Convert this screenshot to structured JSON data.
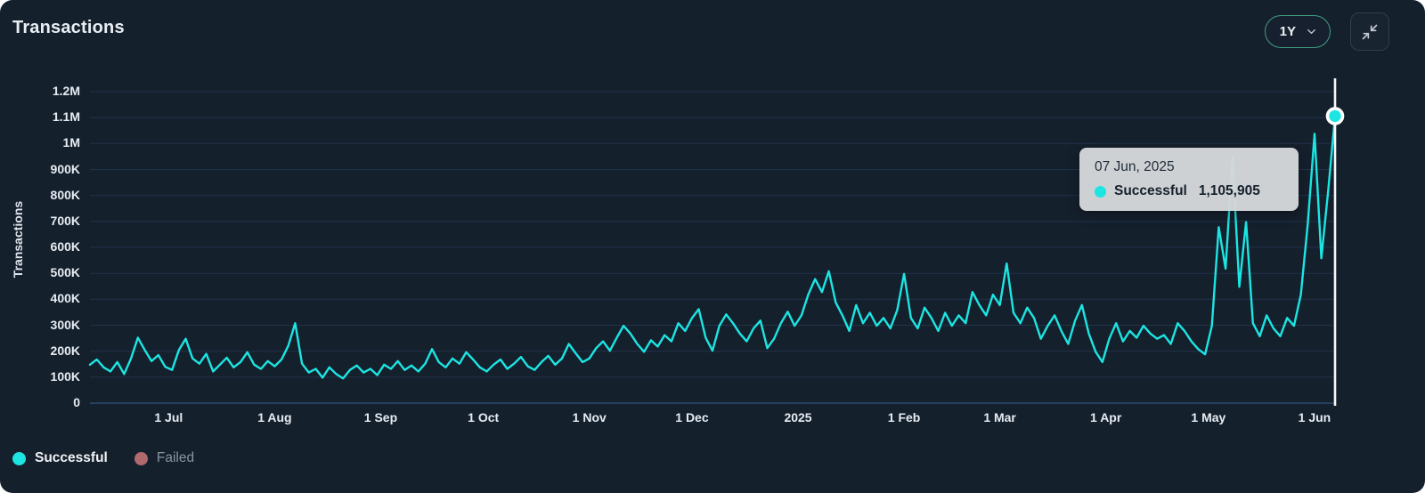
{
  "header": {
    "title": "Transactions",
    "range_selector": {
      "value": "1Y"
    }
  },
  "tooltip": {
    "date": "07 Jun, 2025",
    "series_label": "Successful",
    "value": "1,105,905"
  },
  "legend": [
    {
      "label": "Successful",
      "color": "#1ce5e2",
      "active": true
    },
    {
      "label": "Failed",
      "color": "#b06a6e",
      "active": false
    }
  ],
  "colors": {
    "background": "#15202d",
    "line": "#1ce5e2",
    "gridline": "#20324a",
    "axis_line": "#2d4b6e",
    "crosshair": "#f5f8fa",
    "tooltip_bg": "#d5d7d9",
    "tooltip_text": "#16202c",
    "text_primary": "#e9eef3",
    "text_muted": "#8b95a2",
    "range_pill_border": "#3f9e82",
    "failed": "#b06a6e"
  },
  "chart_data": {
    "type": "line",
    "title": "Transactions",
    "xlabel": "",
    "ylabel": "Transactions",
    "ylim": [
      0,
      1200000
    ],
    "grid": "horizontal",
    "legend_position": "bottom-left",
    "y_ticks": [
      {
        "label": "0",
        "value": 0
      },
      {
        "label": "100K",
        "value": 100000
      },
      {
        "label": "200K",
        "value": 200000
      },
      {
        "label": "300K",
        "value": 300000
      },
      {
        "label": "400K",
        "value": 400000
      },
      {
        "label": "500K",
        "value": 500000
      },
      {
        "label": "600K",
        "value": 600000
      },
      {
        "label": "700K",
        "value": 700000
      },
      {
        "label": "800K",
        "value": 800000
      },
      {
        "label": "900K",
        "value": 900000
      },
      {
        "label": "1M",
        "value": 1000000
      },
      {
        "label": "1.1M",
        "value": 1100000
      },
      {
        "label": "1.2M",
        "value": 1200000
      }
    ],
    "x_ticks": [
      {
        "label": "1 Jul",
        "day": 23
      },
      {
        "label": "1 Aug",
        "day": 54
      },
      {
        "label": "1 Sep",
        "day": 85
      },
      {
        "label": "1 Oct",
        "day": 115
      },
      {
        "label": "1 Nov",
        "day": 146
      },
      {
        "label": "1 Dec",
        "day": 176
      },
      {
        "label": "2025",
        "day": 207
      },
      {
        "label": "1 Feb",
        "day": 238
      },
      {
        "label": "1 Mar",
        "day": 266
      },
      {
        "label": "1 Apr",
        "day": 297
      },
      {
        "label": "1 May",
        "day": 327
      },
      {
        "label": "1 Jun",
        "day": 358
      }
    ],
    "x_total_days": 364,
    "point_interval_days": 2,
    "estimated": true,
    "series": [
      {
        "name": "Successful",
        "color": "#1ce5e2",
        "values": [
          148000,
          168000,
          138000,
          122000,
          158000,
          112000,
          172000,
          252000,
          205000,
          162000,
          185000,
          140000,
          128000,
          205000,
          248000,
          172000,
          152000,
          190000,
          122000,
          148000,
          175000,
          138000,
          158000,
          196000,
          148000,
          132000,
          162000,
          142000,
          168000,
          222000,
          308000,
          152000,
          118000,
          132000,
          98000,
          138000,
          112000,
          95000,
          128000,
          145000,
          118000,
          132000,
          108000,
          148000,
          132000,
          162000,
          128000,
          145000,
          122000,
          152000,
          208000,
          158000,
          138000,
          172000,
          152000,
          196000,
          168000,
          138000,
          122000,
          148000,
          168000,
          132000,
          152000,
          178000,
          142000,
          128000,
          158000,
          182000,
          148000,
          172000,
          228000,
          192000,
          158000,
          172000,
          212000,
          238000,
          202000,
          252000,
          298000,
          268000,
          228000,
          198000,
          242000,
          218000,
          262000,
          238000,
          308000,
          278000,
          328000,
          362000,
          252000,
          202000,
          298000,
          342000,
          308000,
          268000,
          238000,
          288000,
          318000,
          212000,
          248000,
          308000,
          352000,
          298000,
          338000,
          418000,
          478000,
          428000,
          508000,
          388000,
          338000,
          278000,
          378000,
          308000,
          348000,
          298000,
          328000,
          288000,
          358000,
          498000,
          328000,
          288000,
          368000,
          328000,
          278000,
          348000,
          298000,
          338000,
          308000,
          428000,
          378000,
          338000,
          418000,
          378000,
          538000,
          348000,
          308000,
          368000,
          328000,
          248000,
          298000,
          338000,
          278000,
          228000,
          318000,
          378000,
          268000,
          198000,
          158000,
          248000,
          308000,
          238000,
          278000,
          252000,
          298000,
          268000,
          248000,
          262000,
          228000,
          308000,
          278000,
          238000,
          208000,
          188000,
          298000,
          678000,
          518000,
          948000,
          448000,
          698000,
          308000,
          258000,
          338000,
          288000,
          258000,
          328000,
          298000,
          418000,
          688000,
          1038000,
          558000,
          818000,
          1105905
        ]
      },
      {
        "name": "Failed",
        "color": "#b06a6e",
        "hidden": true,
        "values": []
      }
    ],
    "highlighted_point": {
      "date": "07 Jun, 2025",
      "series": "Successful",
      "value": 1105905
    }
  }
}
